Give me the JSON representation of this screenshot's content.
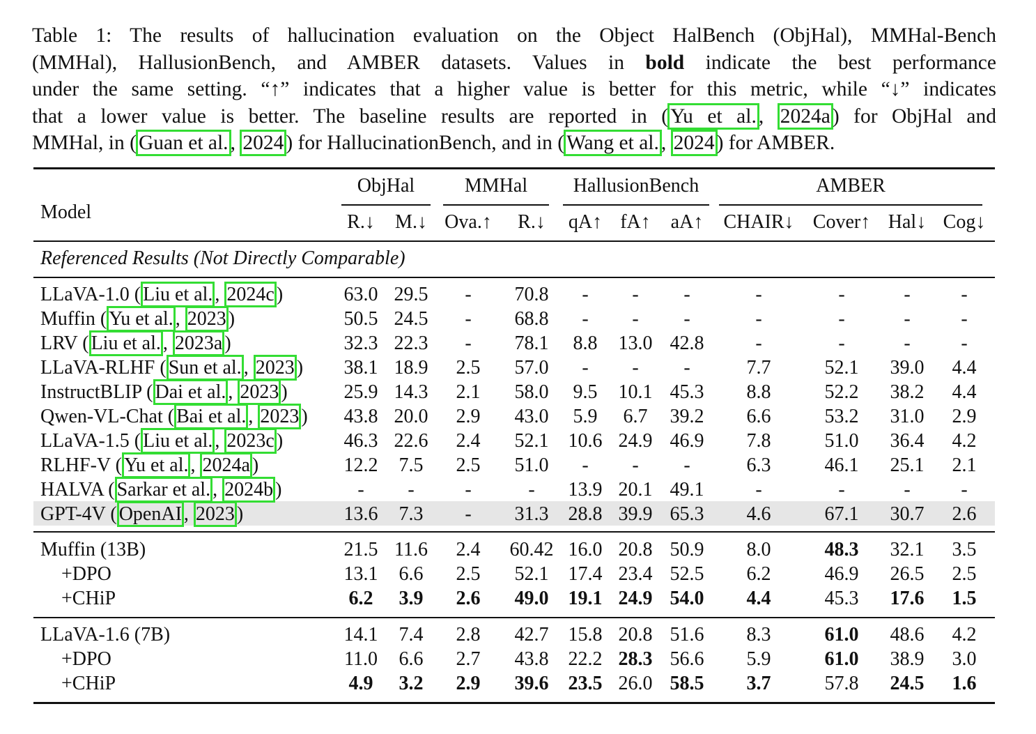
{
  "caption": {
    "lines": [
      [
        "Table 1: The results of hallucination evaluation on the Object HalBench (ObjHal), MMHal-Bench"
      ],
      [
        "(MMHal), HallusionBench, and AMBER datasets. Values in ",
        {
          "b": "bold"
        },
        " indicate the best performance"
      ],
      [
        "under the same setting. “↑” indicates that a higher value is better for this metric, while “↓” indicates"
      ],
      [
        "that a lower value is better. The baseline results are reported in (",
        {
          "c": "Yu et al."
        },
        ", ",
        {
          "c": "2024a"
        },
        ") for ObjHal and"
      ],
      [
        "MMHal, in (",
        {
          "c": "Guan et al."
        },
        ", ",
        {
          "c": "2024"
        },
        ") for HallucinationBench, and in (",
        {
          "c": "Wang et al."
        },
        ", ",
        {
          "c": "2024"
        },
        ") for AMBER."
      ]
    ]
  },
  "table": {
    "model_header": "Model",
    "groups": [
      "ObjHal",
      "MMHal",
      "HallusionBench",
      "AMBER"
    ],
    "columns": [
      "R.↓",
      "M.↓",
      "Ova.↑",
      "R.↓",
      "qA↑",
      "fA↑",
      "aA↑",
      "CHAIR↓",
      "Cover↑",
      "Hal↓",
      "Cog↓"
    ],
    "section_label": "Referenced Results (Not Directly Comparable)",
    "referenced_rows": [
      {
        "name": "LLaVA-1.0",
        "cite": [
          "Liu et al.",
          "2024c"
        ],
        "values": [
          "63.0",
          "29.5",
          "-",
          "70.8",
          "-",
          "-",
          "-",
          "-",
          "-",
          "-",
          "-"
        ]
      },
      {
        "name": "Muffin",
        "cite": [
          "Yu et al.",
          "2023"
        ],
        "values": [
          "50.5",
          "24.5",
          "-",
          "68.8",
          "-",
          "-",
          "-",
          "-",
          "-",
          "-",
          "-"
        ]
      },
      {
        "name": "LRV",
        "cite": [
          "Liu et al.",
          "2023a"
        ],
        "values": [
          "32.3",
          "22.3",
          "-",
          "78.1",
          "8.8",
          "13.0",
          "42.8",
          "-",
          "-",
          "-",
          "-"
        ]
      },
      {
        "name": "LLaVA-RLHF",
        "cite": [
          "Sun et al.",
          "2023"
        ],
        "values": [
          "38.1",
          "18.9",
          "2.5",
          "57.0",
          "-",
          "-",
          "-",
          "7.7",
          "52.1",
          "39.0",
          "4.4"
        ]
      },
      {
        "name": "InstructBLIP",
        "cite": [
          "Dai et al.",
          "2023"
        ],
        "values": [
          "25.9",
          "14.3",
          "2.1",
          "58.0",
          "9.5",
          "10.1",
          "45.3",
          "8.8",
          "52.2",
          "38.2",
          "4.4"
        ]
      },
      {
        "name": "Qwen-VL-Chat",
        "cite": [
          "Bai et al.",
          "2023"
        ],
        "values": [
          "43.8",
          "20.0",
          "2.9",
          "43.0",
          "5.9",
          "6.7",
          "39.2",
          "6.6",
          "53.2",
          "31.0",
          "2.9"
        ]
      },
      {
        "name": "LLaVA-1.5",
        "cite": [
          "Liu et al.",
          "2023c"
        ],
        "values": [
          "46.3",
          "22.6",
          "2.4",
          "52.1",
          "10.6",
          "24.9",
          "46.9",
          "7.8",
          "51.0",
          "36.4",
          "4.2"
        ]
      },
      {
        "name": "RLHF-V",
        "cite": [
          "Yu et al.",
          "2024a"
        ],
        "values": [
          "12.2",
          "7.5",
          "2.5",
          "51.0",
          "-",
          "-",
          "-",
          "6.3",
          "46.1",
          "25.1",
          "2.1"
        ]
      },
      {
        "name": "HALVA",
        "cite": [
          "Sarkar et al.",
          "2024b"
        ],
        "values": [
          "-",
          "-",
          "-",
          "-",
          "13.9",
          "20.1",
          "49.1",
          "-",
          "-",
          "-",
          "-"
        ]
      },
      {
        "name": "GPT-4V",
        "cite": [
          "OpenAI",
          "2023"
        ],
        "values": [
          "13.6",
          "7.3",
          "-",
          "31.3",
          "28.8",
          "39.9",
          "65.3",
          "4.6",
          "67.1",
          "30.7",
          "2.6"
        ]
      }
    ],
    "muffin_block": [
      {
        "name": "Muffin (13B)",
        "values": [
          "21.5",
          "11.6",
          "2.4",
          "60.42",
          "16.0",
          "20.8",
          "50.9",
          "8.0",
          "48.3",
          "32.1",
          "3.5"
        ],
        "bold": [
          8
        ]
      },
      {
        "name": "+DPO",
        "values": [
          "13.1",
          "6.6",
          "2.5",
          "52.1",
          "17.4",
          "23.4",
          "52.5",
          "6.2",
          "46.9",
          "26.5",
          "2.5"
        ],
        "bold": []
      },
      {
        "name": "+CHiP",
        "values": [
          "6.2",
          "3.9",
          "2.6",
          "49.0",
          "19.1",
          "24.9",
          "54.0",
          "4.4",
          "45.3",
          "17.6",
          "1.5"
        ],
        "bold": [
          0,
          1,
          2,
          3,
          4,
          5,
          6,
          7,
          9,
          10
        ]
      }
    ],
    "llava_block": [
      {
        "name": "LLaVA-1.6 (7B)",
        "values": [
          "14.1",
          "7.4",
          "2.8",
          "42.7",
          "15.8",
          "20.8",
          "51.6",
          "8.3",
          "61.0",
          "48.6",
          "4.2"
        ],
        "bold": [
          8
        ]
      },
      {
        "name": "+DPO",
        "values": [
          "11.0",
          "6.6",
          "2.7",
          "43.8",
          "22.2",
          "28.3",
          "56.6",
          "5.9",
          "61.0",
          "38.9",
          "3.0"
        ],
        "bold": [
          5,
          8
        ]
      },
      {
        "name": "+CHiP",
        "values": [
          "4.9",
          "3.2",
          "2.9",
          "39.6",
          "23.5",
          "26.0",
          "58.5",
          "3.7",
          "57.8",
          "24.5",
          "1.6"
        ],
        "bold": [
          0,
          1,
          2,
          3,
          4,
          6,
          7,
          9,
          10
        ]
      }
    ]
  }
}
